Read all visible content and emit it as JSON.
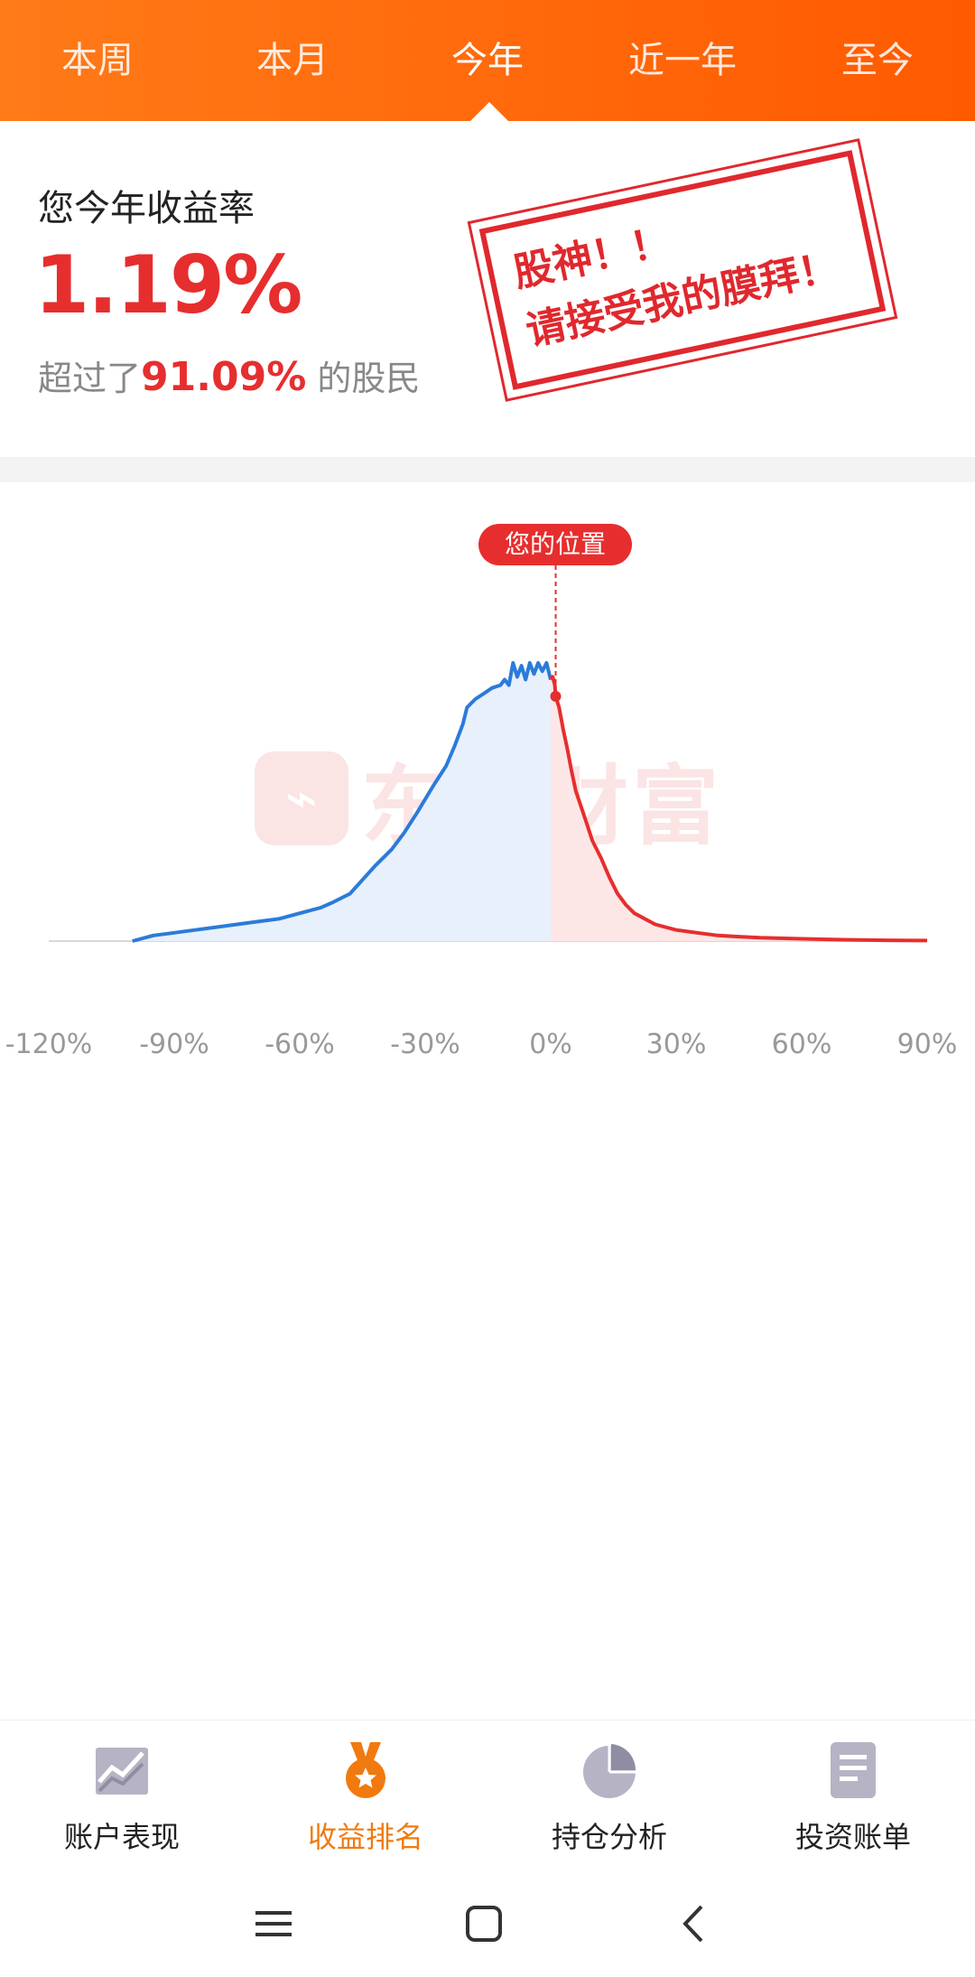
{
  "tabs": [
    {
      "label": "本周"
    },
    {
      "label": "本月"
    },
    {
      "label": "今年"
    },
    {
      "label": "近一年"
    },
    {
      "label": "至今"
    }
  ],
  "active_tab": "今年",
  "summary": {
    "label": "您今年收益率",
    "rate": "1.19%",
    "beat_prefix": "超过了",
    "beat_pct": "91.09%",
    "beat_suffix": " 的股民"
  },
  "stamp": {
    "line1": "股神！！",
    "line2": "请接受我的膜拜！"
  },
  "watermark": {
    "logo_glyph": "⌁",
    "text": "东方财富"
  },
  "chart_data": {
    "type": "area",
    "position_label": "您的位置",
    "user_return_pct": 1.19,
    "x_tick_labels": [
      "-120%",
      "-90%",
      "-60%",
      "-30%",
      "0%",
      "30%",
      "60%",
      "90%"
    ],
    "x_ticks": [
      -120,
      -90,
      -60,
      -30,
      0,
      30,
      60,
      90
    ],
    "xlim": [
      -120,
      90
    ],
    "ylim": [
      0,
      100
    ],
    "series": [
      {
        "x": [
          -100,
          -95,
          -90,
          -85,
          -80,
          -75,
          -70,
          -65,
          -60,
          -55,
          -52,
          -48,
          -45,
          -42,
          -38,
          -35,
          -32,
          -28,
          -25,
          -23,
          -21,
          -20,
          -18,
          -16,
          -14,
          -12,
          -11,
          -10,
          -9,
          -8,
          -7,
          -6,
          -5,
          -4,
          -3,
          -2,
          -1,
          0,
          0.5,
          1,
          1.19,
          2,
          3,
          4,
          5,
          6,
          8,
          10,
          12,
          14,
          16,
          18,
          20,
          25,
          30,
          35,
          40,
          45,
          50,
          55,
          60,
          70,
          80,
          90
        ],
        "y": [
          0,
          2,
          3,
          4,
          5,
          6,
          7,
          8,
          10,
          12,
          14,
          17,
          22,
          27,
          33,
          39,
          46,
          56,
          63,
          70,
          78,
          84,
          87,
          89,
          91,
          92,
          94,
          92,
          100,
          95,
          99,
          94,
          100,
          96,
          100,
          97,
          100,
          94,
          95,
          92,
          88,
          84,
          76,
          69,
          61,
          54,
          45,
          36,
          30,
          23,
          17,
          13,
          10,
          6,
          4,
          3,
          2,
          1.6,
          1.2,
          1,
          0.8,
          0.5,
          0.3,
          0.2
        ]
      }
    ],
    "colors": {
      "below": "#2b7bd9",
      "above": "#e62e2e",
      "below_fill": "#e8f0fb",
      "above_fill": "#fde6e6"
    }
  },
  "bottom_nav": [
    {
      "label": "账户表现",
      "icon": "trend-chart-icon"
    },
    {
      "label": "收益排名",
      "icon": "medal-icon"
    },
    {
      "label": "持仓分析",
      "icon": "pie-chart-icon"
    },
    {
      "label": "投资账单",
      "icon": "document-icon"
    }
  ],
  "active_nav": "收益排名"
}
